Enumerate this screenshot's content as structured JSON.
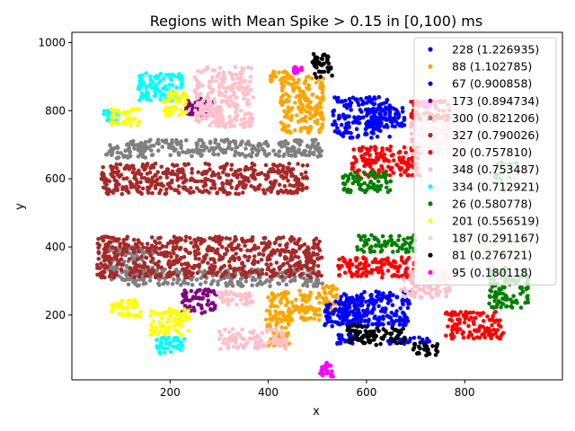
{
  "chart_data": {
    "type": "scatter",
    "title": "Regions with Mean Spike > 0.15 in [0,100) ms",
    "xlabel": "x",
    "ylabel": "y",
    "xlim": [
      0,
      999
    ],
    "ylim": [
      10,
      1030
    ],
    "xticks": [
      200,
      400,
      600,
      800
    ],
    "yticks": [
      200,
      400,
      600,
      800,
      1000
    ],
    "grid": false,
    "legend_position": "upper right",
    "series": [
      {
        "name": "228 (1.226935)",
        "color": "#0000ff",
        "regions": [
          [
            590,
            780,
            60,
            60
          ],
          [
            640,
            780,
            40,
            30
          ],
          [
            620,
            220,
            70,
            50
          ],
          [
            680,
            125,
            50,
            10
          ],
          [
            560,
            130,
            20,
            15
          ]
        ]
      },
      {
        "name": "88 (1.102785)",
        "color": "#ffa500",
        "regions": [
          [
            470,
            820,
            45,
            85
          ],
          [
            420,
            900,
            20,
            15
          ],
          [
            450,
            230,
            55,
            45
          ],
          [
            420,
            150,
            25,
            40
          ],
          [
            525,
            250,
            15,
            40
          ]
        ]
      },
      {
        "name": "67 (0.900858)",
        "color": "#0000ff",
        "regions": [
          [
            580,
            210,
            35,
            45
          ],
          [
            540,
            200,
            25,
            40
          ]
        ]
      },
      {
        "name": "173 (0.894734)",
        "color": "#800080",
        "regions": [
          [
            260,
            810,
            30,
            25
          ],
          [
            260,
            240,
            35,
            35
          ]
        ]
      },
      {
        "name": "300 (0.821206)",
        "color": "#808080",
        "regions": [
          [
            310,
            690,
            200,
            25
          ],
          [
            310,
            310,
            200,
            25
          ],
          [
            120,
            350,
            50,
            50
          ],
          [
            110,
            680,
            40,
            20
          ]
        ]
      },
      {
        "name": "327 (0.790026)",
        "color": "#a52a2a",
        "regions": [
          [
            270,
            600,
            210,
            45
          ],
          [
            280,
            370,
            230,
            60
          ]
        ]
      },
      {
        "name": "20 (0.757810)",
        "color": "#ff0000",
        "regions": [
          [
            640,
            650,
            70,
            45
          ],
          [
            730,
            800,
            40,
            30
          ],
          [
            820,
            170,
            60,
            40
          ],
          [
            620,
            340,
            80,
            30
          ]
        ]
      },
      {
        "name": "348 (0.753487)",
        "color": "#ffc0cb",
        "regions": [
          [
            310,
            840,
            60,
            90
          ],
          [
            370,
            130,
            70,
            30
          ],
          [
            330,
            250,
            40,
            20
          ],
          [
            740,
            720,
            50,
            50
          ],
          [
            720,
            290,
            50,
            40
          ]
        ]
      },
      {
        "name": "334 (0.712921)",
        "color": "#00ffff",
        "regions": [
          [
            180,
            870,
            45,
            40
          ],
          [
            200,
            110,
            30,
            25
          ],
          [
            80,
            780,
            15,
            20
          ]
        ]
      },
      {
        "name": "26 (0.580778)",
        "color": "#008000",
        "regions": [
          [
            600,
            590,
            50,
            30
          ],
          [
            640,
            410,
            60,
            25
          ],
          [
            890,
            280,
            40,
            60
          ],
          [
            880,
            620,
            30,
            30
          ]
        ]
      },
      {
        "name": "201 (0.556519)",
        "color": "#ffff00",
        "regions": [
          [
            110,
            780,
            30,
            25
          ],
          [
            210,
            820,
            25,
            35
          ],
          [
            110,
            220,
            30,
            25
          ],
          [
            200,
            180,
            40,
            40
          ]
        ]
      },
      {
        "name": "187 (0.291167)",
        "color": "#d0ead0",
        "regions": [
          [
            880,
            600,
            70,
            40
          ],
          [
            870,
            400,
            60,
            40
          ]
        ]
      },
      {
        "name": "81 (0.276721)",
        "color": "#000000",
        "regions": [
          [
            510,
            930,
            20,
            40
          ],
          [
            720,
            100,
            25,
            20
          ],
          [
            620,
            140,
            60,
            30
          ]
        ]
      },
      {
        "name": "95 (0.180118)",
        "color": "#ff00ff",
        "regions": [
          [
            520,
            40,
            15,
            20
          ],
          [
            460,
            920,
            10,
            10
          ],
          [
            720,
            820,
            10,
            10
          ]
        ]
      }
    ]
  }
}
